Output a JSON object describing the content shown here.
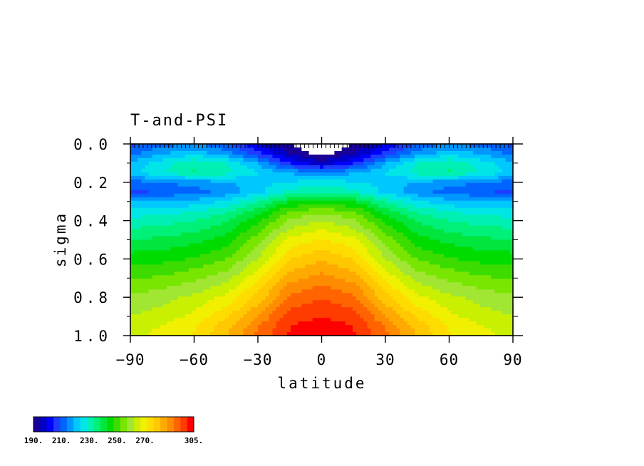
{
  "chart_data": {
    "type": "heatmap",
    "title": "T-and-PSI",
    "xlabel": "latitude",
    "ylabel": "sigma",
    "xlim": [
      -90,
      90
    ],
    "ylim": [
      0.0,
      1.0
    ],
    "y_inverted": true,
    "grid": false,
    "x_ticks": [
      -90,
      -60,
      -30,
      0,
      30,
      60,
      90
    ],
    "x_tick_labels": [
      "−90",
      "−60",
      "−30",
      "0",
      "30",
      "60",
      "90"
    ],
    "y_ticks": [
      0.0,
      0.2,
      0.4,
      0.6,
      0.8,
      1.0
    ],
    "y_tick_labels": [
      "0.0",
      "0.2",
      "0.4",
      "0.6",
      "0.8",
      "1.0"
    ],
    "colorbar": {
      "placement": "bottom-left",
      "min": 190,
      "max": 305,
      "step": 5,
      "labels": [
        "190.",
        "210.",
        "230.",
        "250.",
        "270.",
        "305."
      ],
      "label_values": [
        190,
        210,
        230,
        250,
        270,
        305
      ],
      "colors": [
        "#1a0096",
        "#0000c8",
        "#0000ff",
        "#1e3cff",
        "#0064ff",
        "#0096ff",
        "#00c8ff",
        "#00e6e6",
        "#00f0b4",
        "#00f078",
        "#00e63c",
        "#00dc00",
        "#3cdc00",
        "#78e600",
        "#a0e632",
        "#c8f000",
        "#f0f000",
        "#ffdc00",
        "#ffc800",
        "#ffaa00",
        "#ff8c00",
        "#ff6400",
        "#ff3c00",
        "#ff0000"
      ]
    },
    "lat": [
      -90,
      -75,
      -60,
      -45,
      -30,
      -15,
      0,
      15,
      30,
      45,
      60,
      75,
      90
    ],
    "sigma": [
      0.0,
      0.05,
      0.1,
      0.15,
      0.2,
      0.25,
      0.3,
      0.35,
      0.4,
      0.5,
      0.6,
      0.7,
      0.8,
      0.9,
      0.95,
      1.0
    ],
    "values": [
      [
        208,
        212,
        214,
        210,
        200,
        190,
        185,
        190,
        200,
        210,
        214,
        212,
        208
      ],
      [
        212,
        218,
        222,
        216,
        206,
        194,
        188,
        194,
        206,
        216,
        222,
        218,
        212
      ],
      [
        220,
        226,
        232,
        228,
        218,
        204,
        196,
        204,
        218,
        228,
        232,
        226,
        220
      ],
      [
        222,
        228,
        234,
        230,
        224,
        218,
        216,
        218,
        224,
        230,
        234,
        228,
        222
      ],
      [
        212,
        214,
        216,
        218,
        222,
        224,
        225,
        224,
        222,
        218,
        216,
        214,
        212
      ],
      [
        208,
        210,
        212,
        216,
        222,
        230,
        233,
        230,
        222,
        216,
        212,
        210,
        208
      ],
      [
        218,
        219,
        220,
        224,
        232,
        242,
        245,
        242,
        232,
        224,
        220,
        219,
        218
      ],
      [
        225,
        226,
        228,
        232,
        240,
        252,
        255,
        252,
        240,
        232,
        228,
        226,
        225
      ],
      [
        230,
        231,
        233,
        237,
        246,
        258,
        262,
        258,
        246,
        237,
        233,
        231,
        230
      ],
      [
        238,
        239,
        241,
        245,
        255,
        268,
        272,
        268,
        255,
        245,
        241,
        239,
        238
      ],
      [
        245,
        246,
        248,
        252,
        262,
        276,
        280,
        276,
        262,
        252,
        248,
        246,
        245
      ],
      [
        252,
        253,
        256,
        260,
        270,
        284,
        288,
        284,
        270,
        260,
        256,
        253,
        252
      ],
      [
        258,
        260,
        263,
        268,
        278,
        292,
        295,
        292,
        278,
        268,
        263,
        260,
        258
      ],
      [
        262,
        264,
        268,
        275,
        286,
        298,
        300,
        298,
        286,
        275,
        268,
        264,
        262
      ],
      [
        264,
        267,
        271,
        279,
        290,
        300,
        303,
        300,
        290,
        279,
        271,
        267,
        264
      ],
      [
        265,
        268,
        272,
        280,
        292,
        301,
        303,
        301,
        292,
        280,
        272,
        268,
        265
      ]
    ]
  }
}
